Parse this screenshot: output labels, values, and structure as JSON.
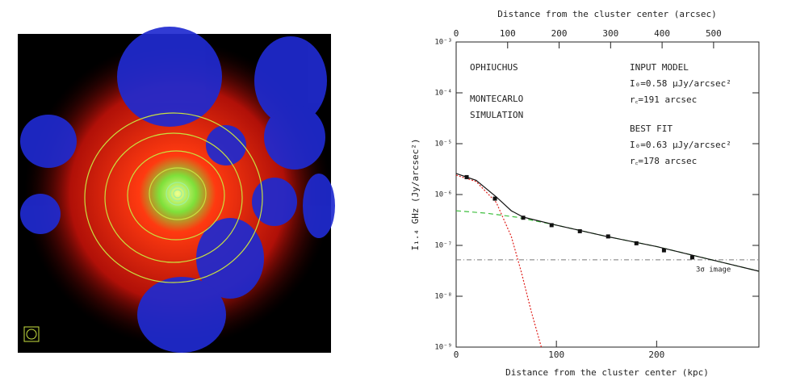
{
  "chart_data": {
    "type": "line",
    "x_label_top": "Distance from the cluster center (arcsec)",
    "x_label": "Distance from the cluster center (kpc)",
    "y_label": "I₁.₄ GHz (Jy/arcsec²)",
    "xlim": [
      0,
      302
    ],
    "xticks": [
      0,
      100,
      200
    ],
    "x2lim": [
      0,
      588
    ],
    "x2ticks": [
      0,
      100,
      200,
      300,
      400,
      500
    ],
    "ylim": [
      1e-09,
      0.001
    ],
    "log_y": true,
    "yticks": [
      {
        "value": 1e-09,
        "label": "10⁻⁹"
      },
      {
        "value": 1e-08,
        "label": "10⁻⁸"
      },
      {
        "value": 1e-07,
        "label": "10⁻⁷"
      },
      {
        "value": 1e-06,
        "label": "10⁻⁶"
      },
      {
        "value": 1e-05,
        "label": "10⁻⁵"
      },
      {
        "value": 0.0001,
        "label": "10⁻⁴"
      },
      {
        "value": 0.001,
        "label": "10⁻³"
      }
    ],
    "series": [
      {
        "style": "dotted",
        "color": "#e0201c",
        "x": [
          0,
          20,
          40,
          55,
          65,
          75,
          85
        ],
        "values": [
          2.4e-06,
          1.8e-06,
          7e-07,
          1.5e-07,
          3e-08,
          5e-09,
          1e-09
        ]
      },
      {
        "style": "dashed",
        "color": "#3fbf3f",
        "x": [
          0,
          30,
          60,
          100,
          150,
          200,
          250,
          302
        ],
        "values": [
          4.8e-07,
          4.3e-07,
          3.6e-07,
          2.5e-07,
          1.5e-07,
          9.5e-08,
          5.5e-08,
          3.1e-08
        ]
      },
      {
        "style": "solid",
        "color": "#111111",
        "x": [
          0,
          20,
          40,
          55,
          67,
          100,
          150,
          200,
          250,
          302
        ],
        "values": [
          2.6e-06,
          1.9e-06,
          9e-07,
          4.8e-07,
          3.6e-07,
          2.5e-07,
          1.5e-07,
          9.5e-08,
          5.5e-08,
          3.1e-08
        ]
      },
      {
        "style": "points",
        "color": "#111111",
        "x": [
          10.5,
          38.7,
          66.9,
          95.2,
          123.4,
          151.6,
          179.8,
          207.3,
          235.5
        ],
        "values": [
          2.2e-06,
          8.3e-07,
          3.5e-07,
          2.5e-07,
          1.9e-07,
          1.5e-07,
          1.1e-07,
          8e-08,
          5.8e-08
        ]
      }
    ],
    "threshold": {
      "value": 5.2e-08,
      "label": "3σ image",
      "color": "#777777"
    },
    "annotations": [
      "OPHIUCHUS",
      "MONTECARLO",
      "SIMULATION",
      "INPUT MODEL",
      "I₀=0.58 μJy/arcsec²",
      "r꜀=191 arcsec",
      "BEST FIT",
      "I₀=0.63 μJy/arcsec²",
      "r꜀=178 arcsec"
    ]
  }
}
